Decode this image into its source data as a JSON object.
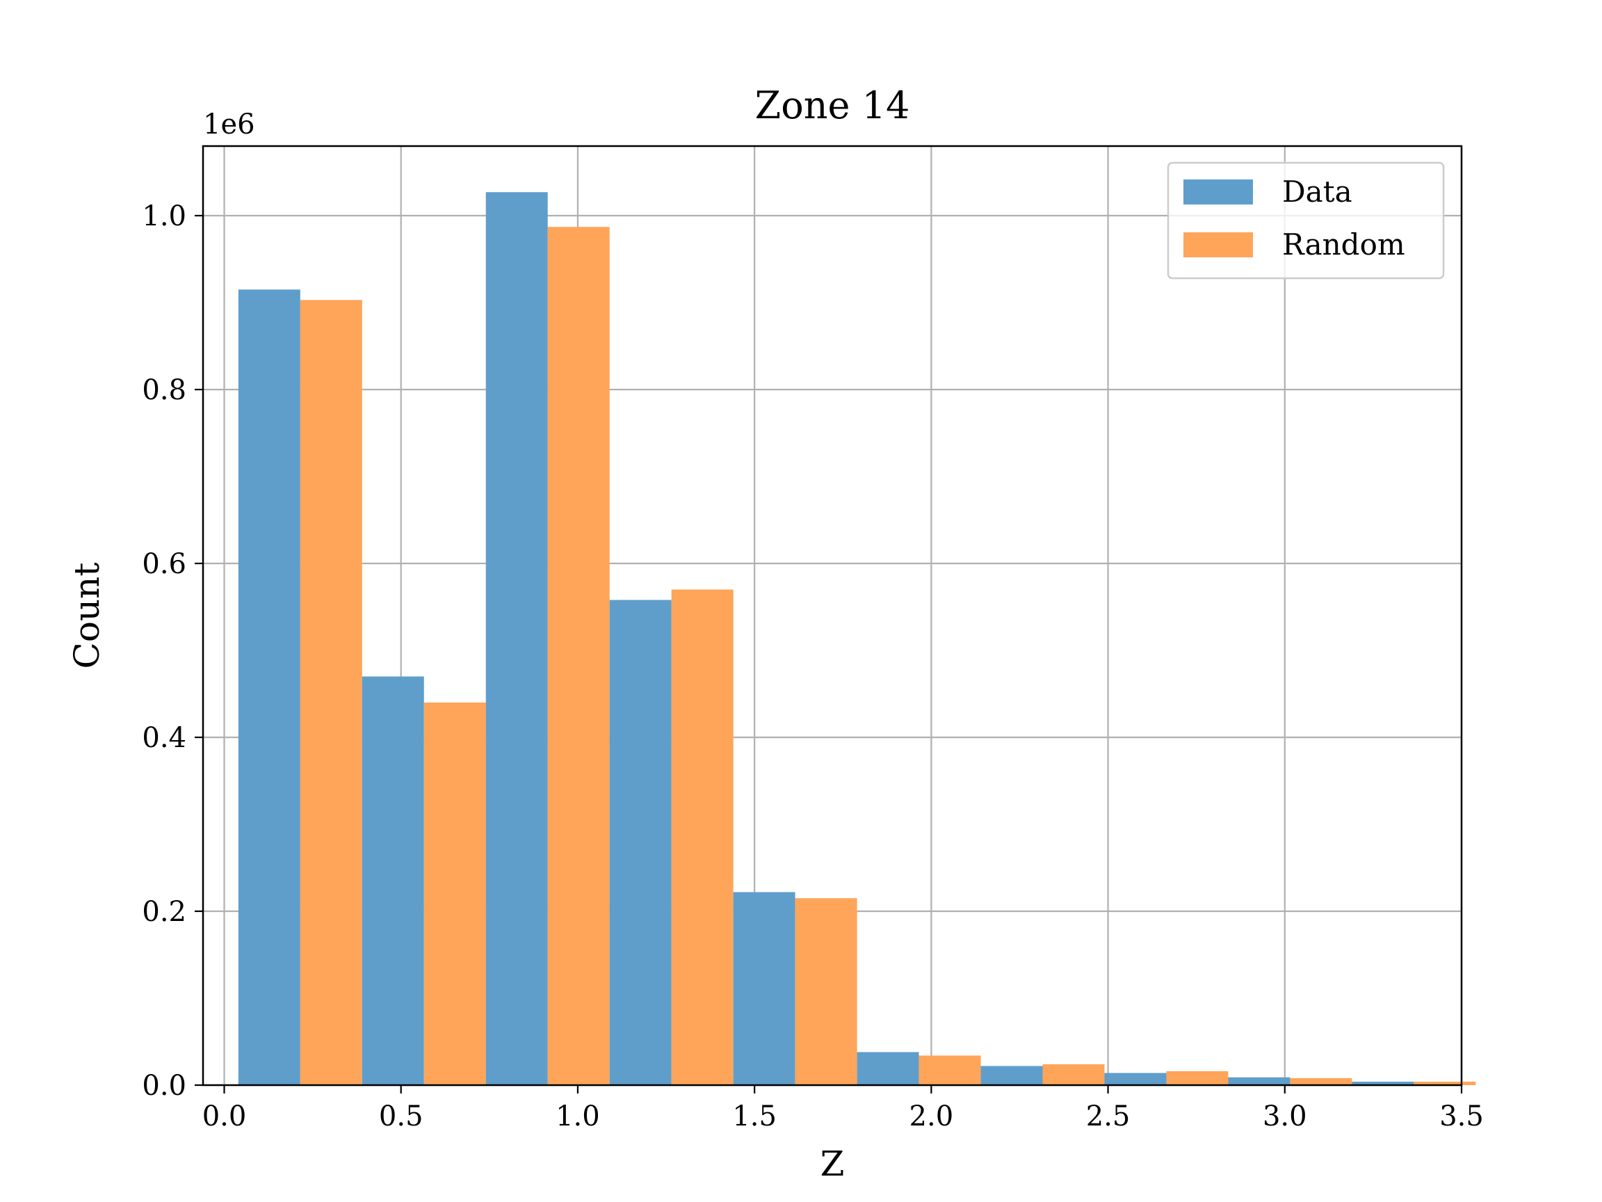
{
  "chart_data": {
    "type": "bar",
    "title": "Zone 14",
    "xlabel": "Z",
    "ylabel": "Count",
    "y_offset_text": "1e6",
    "xlim": [
      -0.06,
      3.5
    ],
    "ylim": [
      0,
      1.08
    ],
    "x_ticks": [
      0.0,
      0.5,
      1.0,
      1.5,
      2.0,
      2.5,
      3.0,
      3.5
    ],
    "x_tick_labels": [
      "0.0",
      "0.5",
      "1.0",
      "1.5",
      "2.0",
      "2.5",
      "3.0",
      "3.5"
    ],
    "y_ticks": [
      0.0,
      0.2,
      0.4,
      0.6,
      0.8,
      1.0
    ],
    "y_tick_labels": [
      "0.0",
      "0.2",
      "0.4",
      "0.6",
      "0.8",
      "1.0"
    ],
    "grid": true,
    "legend_position": "top-right",
    "bins": [
      [
        0.04,
        0.39
      ],
      [
        0.39,
        0.74
      ],
      [
        0.74,
        1.09
      ],
      [
        1.09,
        1.44
      ],
      [
        1.44,
        1.79
      ],
      [
        1.79,
        2.14
      ],
      [
        2.14,
        2.49
      ],
      [
        2.49,
        2.84
      ],
      [
        2.84,
        3.19
      ],
      [
        3.19,
        3.54
      ]
    ],
    "series": [
      {
        "name": "Data",
        "color": "#5f9ecb",
        "values": [
          0.915,
          0.47,
          1.027,
          0.558,
          0.222,
          0.038,
          0.022,
          0.014,
          0.009,
          0.004
        ]
      },
      {
        "name": "Random",
        "color": "#fea55a",
        "values": [
          0.903,
          0.44,
          0.987,
          0.57,
          0.215,
          0.034,
          0.024,
          0.016,
          0.008,
          0.004
        ]
      }
    ]
  }
}
